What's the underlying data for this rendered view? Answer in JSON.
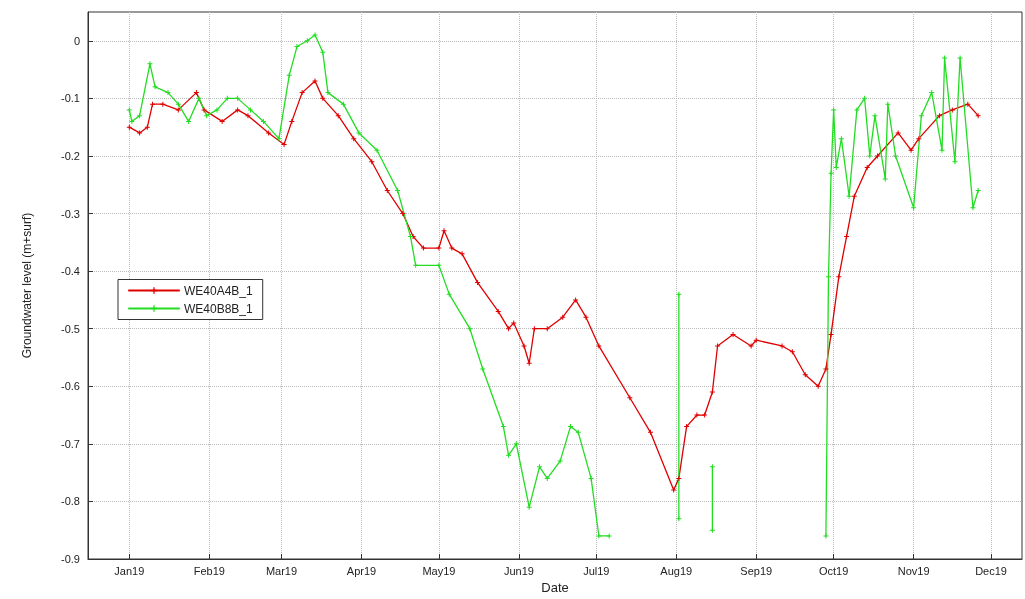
{
  "chart_data": {
    "type": "line",
    "xlabel": "Date",
    "ylabel": "Groundwater level (m+surf)",
    "xlim": [
      "2018-12-16",
      "2019-12-13"
    ],
    "xticks": [
      {
        "value": "2019-01-01",
        "label": "Jan19"
      },
      {
        "value": "2019-02-01",
        "label": "Feb19"
      },
      {
        "value": "2019-03-01",
        "label": "Mar19"
      },
      {
        "value": "2019-04-01",
        "label": "Apr19"
      },
      {
        "value": "2019-05-01",
        "label": "May19"
      },
      {
        "value": "2019-06-01",
        "label": "Jun19"
      },
      {
        "value": "2019-07-01",
        "label": "Jul19"
      },
      {
        "value": "2019-08-01",
        "label": "Aug19"
      },
      {
        "value": "2019-09-01",
        "label": "Sep19"
      },
      {
        "value": "2019-10-01",
        "label": "Oct19"
      },
      {
        "value": "2019-11-01",
        "label": "Nov19"
      },
      {
        "value": "2019-12-01",
        "label": "Dec19"
      }
    ],
    "ylim": [
      -0.9,
      0.05
    ],
    "yticks": [
      -0.9,
      -0.8,
      -0.7,
      -0.6,
      -0.5,
      -0.4,
      -0.3,
      -0.2,
      -0.1,
      0
    ],
    "grid": true,
    "legend": "left",
    "marker": "cross",
    "line_style": "solid",
    "series": [
      {
        "name": "WE40A4B_1",
        "color": "#e00000",
        "x": [
          "2019-01-01",
          "2019-01-05",
          "2019-01-08",
          "2019-01-10",
          "2019-01-14",
          "2019-01-20",
          "2019-01-27",
          "2019-01-30",
          "2019-02-06",
          "2019-02-12",
          "2019-02-16",
          "2019-02-24",
          "2019-03-02",
          "2019-03-05",
          "2019-03-09",
          "2019-03-14",
          "2019-03-17",
          "2019-03-23",
          "2019-03-29",
          "2019-04-05",
          "2019-04-11",
          "2019-04-17",
          "2019-04-21",
          "2019-04-25",
          "2019-05-01",
          "2019-05-03",
          "2019-05-06",
          "2019-05-10",
          "2019-05-16",
          "2019-05-24",
          "2019-05-28",
          "2019-05-30",
          "2019-06-03",
          "2019-06-05",
          "2019-06-07",
          "2019-06-12",
          "2019-06-18",
          "2019-06-23",
          "2019-06-27",
          "2019-07-02",
          "2019-07-14",
          "2019-07-22",
          "2019-07-31",
          "2019-08-02",
          "2019-08-05",
          "2019-08-09",
          "2019-08-12",
          "2019-08-15",
          "2019-08-17",
          "2019-08-23",
          "2019-08-30",
          "2019-09-01",
          "2019-09-11",
          "2019-09-15",
          "2019-09-20",
          "2019-09-25",
          "2019-09-28",
          "2019-09-30",
          "2019-10-03",
          "2019-10-06",
          "2019-10-09",
          "2019-10-14",
          "2019-10-18",
          "2019-10-26",
          "2019-10-31",
          "2019-11-03",
          "2019-11-11",
          "2019-11-16",
          "2019-11-22",
          "2019-11-26"
        ],
        "values": [
          -0.15,
          -0.16,
          -0.15,
          -0.11,
          -0.11,
          -0.12,
          -0.09,
          -0.12,
          -0.14,
          -0.12,
          -0.13,
          -0.16,
          -0.18,
          -0.14,
          -0.09,
          -0.07,
          -0.1,
          -0.13,
          -0.17,
          -0.21,
          -0.26,
          -0.3,
          -0.34,
          -0.36,
          -0.36,
          -0.33,
          -0.36,
          -0.37,
          -0.42,
          -0.47,
          -0.5,
          -0.49,
          -0.53,
          -0.56,
          -0.5,
          -0.5,
          -0.48,
          -0.45,
          -0.48,
          -0.53,
          -0.62,
          -0.68,
          -0.78,
          -0.76,
          -0.67,
          -0.65,
          -0.65,
          -0.61,
          -0.53,
          -0.51,
          -0.53,
          -0.52,
          -0.53,
          -0.54,
          -0.58,
          -0.6,
          -0.57,
          -0.51,
          -0.41,
          -0.34,
          -0.27,
          -0.22,
          -0.2,
          -0.16,
          -0.19,
          -0.17,
          -0.13,
          -0.12,
          -0.11,
          -0.13
        ]
      },
      {
        "name": "WE40B8B_1",
        "color": "#22dd22",
        "x": [
          "2019-01-01",
          "2019-01-02",
          "2019-01-05",
          "2019-01-09",
          "2019-01-11",
          "2019-01-16",
          "2019-01-20",
          "2019-01-24",
          "2019-01-28",
          "2019-01-31",
          "2019-02-04",
          "2019-02-08",
          "2019-02-12",
          "2019-02-17",
          "2019-02-22",
          "2019-02-28",
          "2019-03-04",
          "2019-03-07",
          "2019-03-11",
          "2019-03-14",
          "2019-03-17",
          "2019-03-19",
          "2019-03-25",
          "2019-03-31",
          "2019-04-07",
          "2019-04-15",
          "2019-04-20",
          "2019-04-22",
          "2019-05-01",
          "2019-05-05",
          "2019-05-13",
          "2019-05-18",
          "2019-05-26",
          "2019-05-28",
          "2019-05-31",
          "2019-06-05",
          "2019-06-09",
          "2019-06-12",
          "2019-06-17",
          "2019-06-21",
          "2019-06-24",
          "2019-06-29",
          "2019-07-02",
          "2019-07-06",
          "2019-07-20",
          "2019-08-02",
          "2019-08-02",
          "2019-08-09",
          "2019-08-15",
          "2019-08-15",
          "2019-09-10",
          "2019-09-28",
          "2019-09-29",
          "2019-09-30",
          "2019-10-01",
          "2019-10-02",
          "2019-10-04",
          "2019-10-07",
          "2019-10-10",
          "2019-10-13",
          "2019-10-15",
          "2019-10-17",
          "2019-10-21",
          "2019-10-22",
          "2019-10-25",
          "2019-11-01",
          "2019-11-04",
          "2019-11-08",
          "2019-11-12",
          "2019-11-13",
          "2019-11-17",
          "2019-11-19",
          "2019-11-24",
          "2019-11-26"
        ],
        "values": [
          -0.12,
          -0.14,
          -0.13,
          -0.04,
          -0.08,
          -0.09,
          -0.11,
          -0.14,
          -0.1,
          -0.13,
          -0.12,
          -0.1,
          -0.1,
          -0.12,
          -0.14,
          -0.17,
          -0.06,
          -0.01,
          0,
          0.01,
          -0.02,
          -0.09,
          -0.11,
          -0.16,
          -0.19,
          -0.26,
          -0.34,
          -0.39,
          -0.39,
          -0.44,
          -0.5,
          -0.57,
          -0.67,
          -0.72,
          -0.7,
          -0.81,
          -0.74,
          -0.76,
          -0.73,
          -0.67,
          -0.68,
          -0.76,
          -0.86,
          -0.86,
          null,
          -0.44,
          -0.83,
          null,
          -0.74,
          -0.85,
          null,
          -0.86,
          -0.41,
          -0.23,
          -0.12,
          -0.22,
          -0.17,
          -0.27,
          -0.12,
          -0.1,
          -0.2,
          -0.13,
          -0.24,
          -0.11,
          -0.2,
          -0.29,
          -0.13,
          -0.09,
          -0.19,
          -0.03,
          -0.21,
          -0.03,
          -0.29,
          -0.26
        ]
      }
    ]
  }
}
